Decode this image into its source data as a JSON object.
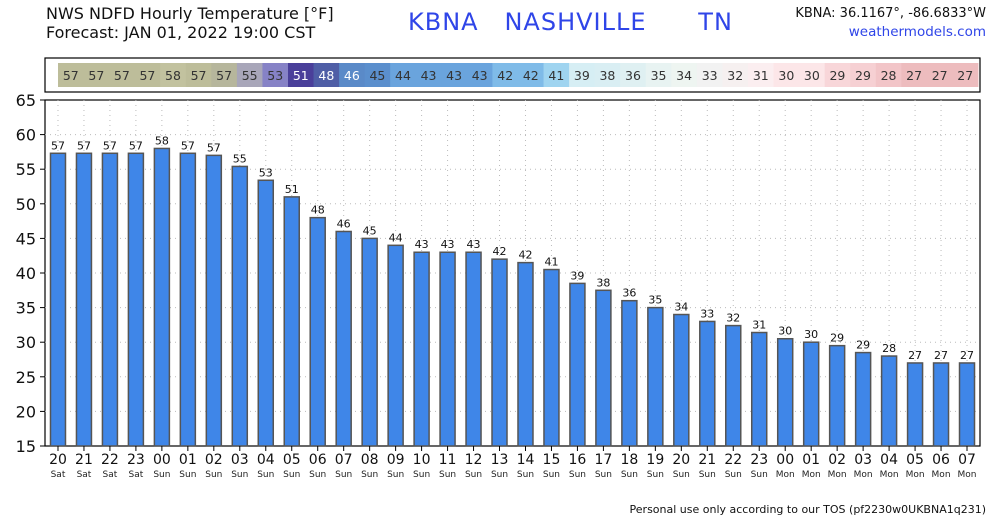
{
  "header": {
    "title_line1": "NWS NDFD Hourly Temperature [°F]",
    "title_line2": "Forecast: JAN 01, 2022 19:00 CST",
    "station_label": "KBNA   NASHVILLE      TN",
    "coords": "KBNA: 36.1167°, -86.6833°W",
    "website": "weathermodels.com"
  },
  "footer": {
    "tos": "Personal use only according to our TOS (pf2230w0UKBNA1q231)"
  },
  "chart_data": {
    "type": "bar",
    "categories": [
      "20",
      "21",
      "22",
      "23",
      "00",
      "01",
      "02",
      "03",
      "04",
      "05",
      "06",
      "07",
      "08",
      "09",
      "10",
      "11",
      "12",
      "13",
      "14",
      "15",
      "16",
      "17",
      "18",
      "19",
      "20",
      "21",
      "22",
      "23",
      "00",
      "01",
      "02",
      "03",
      "04",
      "05",
      "06",
      "07"
    ],
    "days": [
      "Sat",
      "Sat",
      "Sat",
      "Sat",
      "Sun",
      "Sun",
      "Sun",
      "Sun",
      "Sun",
      "Sun",
      "Sun",
      "Sun",
      "Sun",
      "Sun",
      "Sun",
      "Sun",
      "Sun",
      "Sun",
      "Sun",
      "Sun",
      "Sun",
      "Sun",
      "Sun",
      "Sun",
      "Sun",
      "Sun",
      "Sun",
      "Sun",
      "Mon",
      "Mon",
      "Mon",
      "Mon",
      "Mon",
      "Mon",
      "Mon",
      "Mon"
    ],
    "values": [
      57.3,
      57.3,
      57.3,
      57.3,
      58,
      57.3,
      57,
      55.4,
      53.4,
      51,
      48,
      46,
      45,
      44,
      43,
      43,
      43,
      42,
      41.5,
      40.5,
      38.5,
      37.5,
      36,
      35,
      34,
      33,
      32.4,
      31.4,
      30.5,
      30,
      29.5,
      28.5,
      28,
      27,
      27,
      27
    ],
    "labels": [
      "57",
      "57",
      "57",
      "57",
      "58",
      "57",
      "57",
      "55",
      "53",
      "51",
      "48",
      "46",
      "45",
      "44",
      "43",
      "43",
      "43",
      "42",
      "42",
      "41",
      "39",
      "38",
      "36",
      "35",
      "34",
      "33",
      "32",
      "31",
      "30",
      "30",
      "29",
      "29",
      "28",
      "27",
      "27",
      "27"
    ],
    "strip_colors": [
      "#bdbd9a",
      "#bdbd9a",
      "#bdbd9a",
      "#bdbd9a",
      "#c2c29f",
      "#bdbd9a",
      "#b6b69c",
      "#a8a6b9",
      "#8682c6",
      "#4a3f9a",
      "#4f5ea6",
      "#5a8ac8",
      "#5b8fcd",
      "#6aa4dd",
      "#6aa4dd",
      "#6aa4dd",
      "#6aa4dd",
      "#7fbbe8",
      "#7fbbe8",
      "#9fd4f0",
      "#d6eef4",
      "#d9eef3",
      "#dff0f2",
      "#e8f3f2",
      "#eef5f1",
      "#f2f2f2",
      "#f6f0f0",
      "#fbeef0",
      "#fce6e8",
      "#fce6e8",
      "#f8d6d9",
      "#f6d0d3",
      "#f2c5c8",
      "#edbcbe",
      "#edbcbe",
      "#edbcbe"
    ],
    "strip_text_colors": [
      "#333",
      "#333",
      "#333",
      "#333",
      "#333",
      "#333",
      "#333",
      "#333",
      "#333",
      "#fff",
      "#fff",
      "#fff",
      "#333",
      "#333",
      "#333",
      "#333",
      "#333",
      "#333",
      "#333",
      "#333",
      "#333",
      "#333",
      "#333",
      "#333",
      "#333",
      "#333",
      "#333",
      "#333",
      "#333",
      "#333",
      "#333",
      "#333",
      "#333",
      "#333",
      "#333",
      "#333"
    ],
    "yticks": [
      15,
      20,
      25,
      30,
      35,
      40,
      45,
      50,
      55,
      60,
      65
    ],
    "ylim": [
      15,
      65
    ],
    "bar_color": "#3f86e8",
    "grid": true,
    "xlabel": "",
    "ylabel": ""
  }
}
